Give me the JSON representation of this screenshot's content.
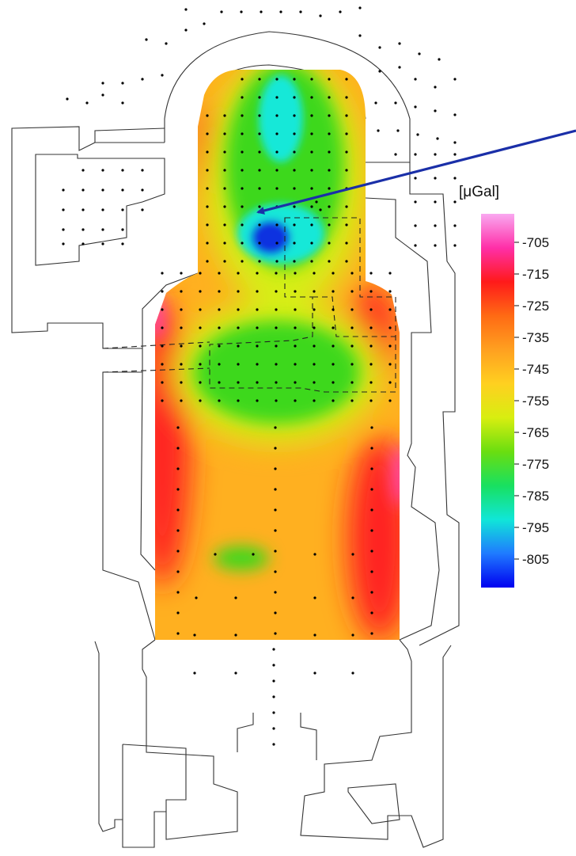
{
  "colorbar": {
    "unit_label": "[μGal]",
    "ticks": [
      "-705",
      "-715",
      "-725",
      "-735",
      "-745",
      "-755",
      "-765",
      "-775",
      "-785",
      "-795",
      "-805"
    ],
    "stops": [
      "#f9a8f0",
      "#ff2fa8",
      "#ff1a1a",
      "#ff6a14",
      "#ffa020",
      "#ffd020",
      "#d8ee10",
      "#6ade10",
      "#18e060",
      "#10e6d8",
      "#1f7aff",
      "#0000f0"
    ]
  },
  "colors": {
    "arrow": "#1a2fa8",
    "survey_points": "#000000",
    "outline": "#333333",
    "background": "#ffffff"
  },
  "anomaly_fill": {
    "base": "#ffb020",
    "high_edge": "#ff2020",
    "peak": "#ff3fb0",
    "medium_low": "#d6ee12",
    "low": "#3ed81a",
    "very_low": "#12e8d8",
    "minimum": "#1030e0"
  }
}
